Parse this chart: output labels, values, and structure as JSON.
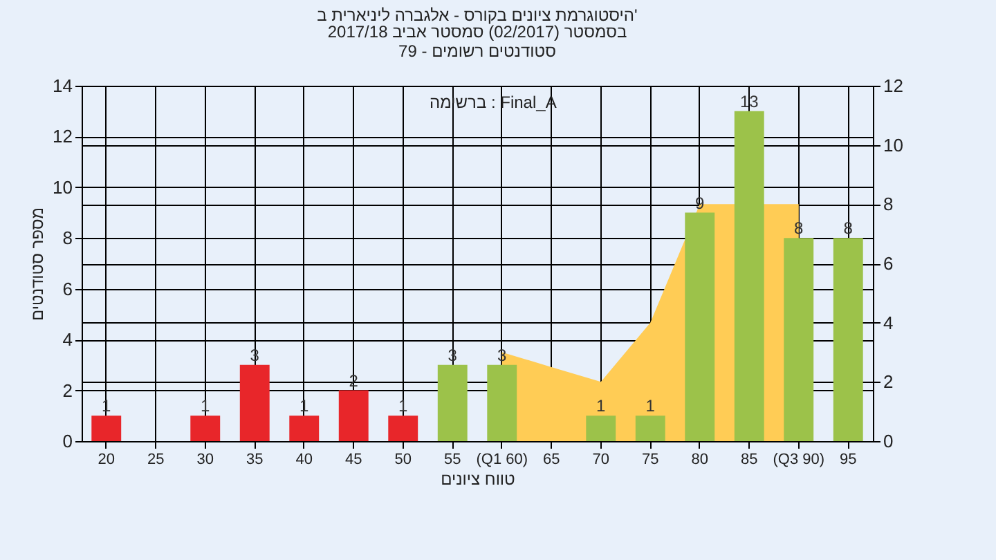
{
  "chart_data": {
    "type": "bar",
    "title": "היסטוגרמת ציונים בקורס - אלגברה ליניארית ב'",
    "subtitle": "בסמסטר  (02/2017)  סמסטר אביב 2017/18\nסטודנטים רשומים - 79",
    "xlabel": "טווח ציונים",
    "ylabel": "מספר סטודנטים",
    "annotations": [
      "ברשימה : Final_A"
    ],
    "categories": [
      "20",
      "25",
      "30",
      "35",
      "40",
      "45",
      "50",
      "55",
      "(Q1 60)",
      "65",
      "70",
      "75",
      "80",
      "85",
      "(Q3 90)",
      "95"
    ],
    "series": [
      {
        "type": "area",
        "axis": "y2",
        "color": "#ffcc55",
        "values": [
          null,
          null,
          null,
          null,
          null,
          null,
          null,
          null,
          3,
          2.5,
          2,
          4,
          8,
          null,
          8,
          null
        ]
      },
      {
        "values": [
          1,
          null,
          1,
          3,
          1,
          2,
          1,
          3,
          3,
          null,
          1,
          1,
          9,
          13,
          8,
          8
        ],
        "value_labels": [
          "1",
          null,
          "1",
          "3",
          "1",
          "2",
          "1",
          "3",
          "3",
          null,
          "1",
          "1",
          "9",
          "13",
          "8",
          "8"
        ],
        "colors": [
          "#e8262a",
          "#e8262a",
          "#e8262a",
          "#e8262a",
          "#e8262a",
          "#e8262a",
          "#e8262a",
          "#9cc24a",
          "#9cc24a",
          "#9cc24a",
          "#9cc24a",
          "#9cc24a",
          "#9cc24a",
          "#9cc24a",
          "#9cc24a",
          "#9cc24a"
        ]
      }
    ],
    "ylim": [
      0,
      14
    ],
    "yticks": [
      0,
      2,
      4,
      6,
      8,
      10,
      12,
      14
    ],
    "y2lim": [
      0,
      12
    ],
    "y2ticks": [
      0,
      2,
      4,
      6,
      8,
      10,
      12
    ],
    "grid": true
  }
}
